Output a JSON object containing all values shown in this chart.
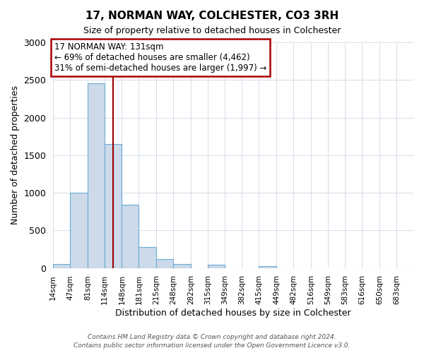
{
  "title": "17, NORMAN WAY, COLCHESTER, CO3 3RH",
  "subtitle": "Size of property relative to detached houses in Colchester",
  "xlabel": "Distribution of detached houses by size in Colchester",
  "ylabel": "Number of detached properties",
  "bin_labels": [
    "14sqm",
    "47sqm",
    "81sqm",
    "114sqm",
    "148sqm",
    "181sqm",
    "215sqm",
    "248sqm",
    "282sqm",
    "315sqm",
    "349sqm",
    "382sqm",
    "415sqm",
    "449sqm",
    "482sqm",
    "516sqm",
    "549sqm",
    "583sqm",
    "616sqm",
    "650sqm",
    "683sqm"
  ],
  "bar_heights": [
    55,
    1000,
    2460,
    1650,
    840,
    280,
    120,
    55,
    0,
    45,
    0,
    0,
    20,
    0,
    0,
    0,
    0,
    0,
    0,
    0,
    0
  ],
  "bar_color": "#ccdaea",
  "bar_edge_color": "#6aaad4",
  "property_line_x": 131,
  "annotation_line0": "17 NORMAN WAY: 131sqm",
  "annotation_line1": "← 69% of detached houses are smaller (4,462)",
  "annotation_line2": "31% of semi-detached houses are larger (1,997) →",
  "annotation_box_color": "#ffffff",
  "annotation_box_edge": "#aa0000",
  "vline_color": "#990000",
  "ylim": [
    0,
    3000
  ],
  "yticks": [
    0,
    500,
    1000,
    1500,
    2000,
    2500,
    3000
  ],
  "footer1": "Contains HM Land Registry data © Crown copyright and database right 2024.",
  "footer2": "Contains public sector information licensed under the Open Government Licence v3.0.",
  "bin_edges": [
    14,
    47,
    81,
    114,
    148,
    181,
    215,
    248,
    282,
    315,
    349,
    382,
    415,
    449,
    482,
    516,
    549,
    583,
    616,
    650,
    683,
    716
  ],
  "grid_color": "#d5dfe8"
}
